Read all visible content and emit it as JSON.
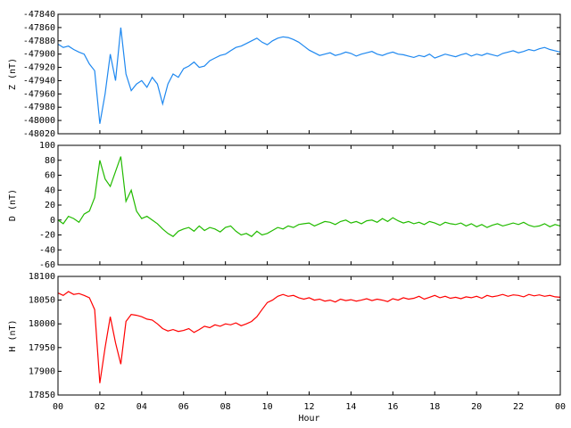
{
  "chart_data": [
    {
      "type": "line",
      "ylabel": "Z (nT)",
      "color": "#1e88f0",
      "x": [
        0,
        0.25,
        0.5,
        0.75,
        1,
        1.25,
        1.5,
        1.75,
        2,
        2.25,
        2.5,
        2.75,
        3,
        3.25,
        3.5,
        3.75,
        4,
        4.25,
        4.5,
        4.75,
        5,
        5.25,
        5.5,
        5.75,
        6,
        6.25,
        6.5,
        6.75,
        7,
        7.25,
        7.5,
        7.75,
        8,
        8.25,
        8.5,
        8.75,
        9,
        9.25,
        9.5,
        9.75,
        10,
        10.25,
        10.5,
        10.75,
        11,
        11.25,
        11.5,
        11.75,
        12,
        12.25,
        12.5,
        12.75,
        13,
        13.25,
        13.5,
        13.75,
        14,
        14.25,
        14.5,
        14.75,
        15,
        15.25,
        15.5,
        15.75,
        16,
        16.25,
        16.5,
        16.75,
        17,
        17.25,
        17.5,
        17.75,
        18,
        18.25,
        18.5,
        18.75,
        19,
        19.25,
        19.5,
        19.75,
        20,
        20.25,
        20.5,
        20.75,
        21,
        21.25,
        21.5,
        21.75,
        22,
        22.25,
        22.5,
        22.75,
        23,
        23.25,
        23.5,
        23.75,
        24
      ],
      "values": [
        -47885,
        -47890,
        -47888,
        -47893,
        -47897,
        -47900,
        -47915,
        -47925,
        -48005,
        -47960,
        -47900,
        -47940,
        -47860,
        -47930,
        -47955,
        -47945,
        -47940,
        -47950,
        -47935,
        -47945,
        -47975,
        -47945,
        -47930,
        -47935,
        -47922,
        -47918,
        -47912,
        -47920,
        -47918,
        -47910,
        -47906,
        -47902,
        -47900,
        -47895,
        -47890,
        -47888,
        -47884,
        -47880,
        -47876,
        -47882,
        -47886,
        -47880,
        -47876,
        -47874,
        -47875,
        -47878,
        -47882,
        -47888,
        -47894,
        -47898,
        -47902,
        -47900,
        -47898,
        -47902,
        -47900,
        -47897,
        -47899,
        -47903,
        -47900,
        -47898,
        -47896,
        -47900,
        -47902,
        -47899,
        -47897,
        -47900,
        -47901,
        -47903,
        -47905,
        -47902,
        -47904,
        -47900,
        -47906,
        -47903,
        -47900,
        -47902,
        -47904,
        -47901,
        -47899,
        -47903,
        -47900,
        -47902,
        -47899,
        -47901,
        -47903,
        -47899,
        -47897,
        -47895,
        -47898,
        -47896,
        -47893,
        -47895,
        -47892,
        -47890,
        -47893,
        -47895,
        -47897
      ],
      "xlim": [
        0,
        24
      ],
      "xticks": [
        0,
        2,
        4,
        6,
        8,
        10,
        12,
        14,
        16,
        18,
        20,
        22,
        24
      ],
      "ylim": [
        -48020,
        -47840
      ],
      "yticks": [
        -48020,
        -48000,
        -47980,
        -47960,
        -47940,
        -47920,
        -47900,
        -47880,
        -47860,
        -47840
      ]
    },
    {
      "type": "line",
      "ylabel": "D (nT)",
      "color": "#22bb00",
      "x": [
        0,
        0.25,
        0.5,
        0.75,
        1,
        1.25,
        1.5,
        1.75,
        2,
        2.25,
        2.5,
        2.75,
        3,
        3.25,
        3.5,
        3.75,
        4,
        4.25,
        4.5,
        4.75,
        5,
        5.25,
        5.5,
        5.75,
        6,
        6.25,
        6.5,
        6.75,
        7,
        7.25,
        7.5,
        7.75,
        8,
        8.25,
        8.5,
        8.75,
        9,
        9.25,
        9.5,
        9.75,
        10,
        10.25,
        10.5,
        10.75,
        11,
        11.25,
        11.5,
        11.75,
        12,
        12.25,
        12.5,
        12.75,
        13,
        13.25,
        13.5,
        13.75,
        14,
        14.25,
        14.5,
        14.75,
        15,
        15.25,
        15.5,
        15.75,
        16,
        16.25,
        16.5,
        16.75,
        17,
        17.25,
        17.5,
        17.75,
        18,
        18.25,
        18.5,
        18.75,
        19,
        19.25,
        19.5,
        19.75,
        20,
        20.25,
        20.5,
        20.75,
        21,
        21.25,
        21.5,
        21.75,
        22,
        22.25,
        22.5,
        22.75,
        23,
        23.25,
        23.5,
        23.75,
        24
      ],
      "values": [
        0,
        -5,
        5,
        2,
        -3,
        8,
        12,
        30,
        80,
        55,
        45,
        65,
        85,
        25,
        40,
        12,
        2,
        5,
        0,
        -5,
        -12,
        -18,
        -22,
        -15,
        -12,
        -10,
        -15,
        -8,
        -14,
        -10,
        -12,
        -16,
        -10,
        -8,
        -15,
        -20,
        -18,
        -22,
        -15,
        -20,
        -18,
        -14,
        -10,
        -12,
        -8,
        -10,
        -6,
        -5,
        -4,
        -8,
        -5,
        -2,
        -3,
        -6,
        -2,
        0,
        -4,
        -2,
        -5,
        -1,
        0,
        -3,
        2,
        -2,
        3,
        -1,
        -4,
        -2,
        -5,
        -3,
        -6,
        -2,
        -4,
        -7,
        -3,
        -5,
        -6,
        -4,
        -8,
        -5,
        -9,
        -6,
        -10,
        -7,
        -5,
        -8,
        -6,
        -4,
        -6,
        -3,
        -7,
        -9,
        -8,
        -5,
        -9,
        -6,
        -8
      ],
      "xlim": [
        0,
        24
      ],
      "xticks": [
        0,
        2,
        4,
        6,
        8,
        10,
        12,
        14,
        16,
        18,
        20,
        22,
        24
      ],
      "ylim": [
        -60,
        100
      ],
      "yticks": [
        -60,
        -40,
        -20,
        0,
        20,
        40,
        60,
        80,
        100
      ]
    },
    {
      "type": "line",
      "ylabel": "H (nT)",
      "xlabel": "Hour",
      "color": "#ff0000",
      "x": [
        0,
        0.25,
        0.5,
        0.75,
        1,
        1.25,
        1.5,
        1.75,
        2,
        2.25,
        2.5,
        2.75,
        3,
        3.25,
        3.5,
        3.75,
        4,
        4.25,
        4.5,
        4.75,
        5,
        5.25,
        5.5,
        5.75,
        6,
        6.25,
        6.5,
        6.75,
        7,
        7.25,
        7.5,
        7.75,
        8,
        8.25,
        8.5,
        8.75,
        9,
        9.25,
        9.5,
        9.75,
        10,
        10.25,
        10.5,
        10.75,
        11,
        11.25,
        11.5,
        11.75,
        12,
        12.25,
        12.5,
        12.75,
        13,
        13.25,
        13.5,
        13.75,
        14,
        14.25,
        14.5,
        14.75,
        15,
        15.25,
        15.5,
        15.75,
        16,
        16.25,
        16.5,
        16.75,
        17,
        17.25,
        17.5,
        17.75,
        18,
        18.25,
        18.5,
        18.75,
        19,
        19.25,
        19.5,
        19.75,
        20,
        20.25,
        20.5,
        20.75,
        21,
        21.25,
        21.5,
        21.75,
        22,
        22.25,
        22.5,
        22.75,
        23,
        23.25,
        23.5,
        23.75,
        24
      ],
      "values": [
        18065,
        18060,
        18068,
        18062,
        18064,
        18060,
        18055,
        18030,
        17875,
        17950,
        18015,
        17960,
        17915,
        18005,
        18020,
        18018,
        18015,
        18010,
        18008,
        18000,
        17990,
        17985,
        17988,
        17984,
        17986,
        17990,
        17982,
        17988,
        17995,
        17992,
        17998,
        17995,
        18000,
        17998,
        18002,
        17996,
        18000,
        18005,
        18015,
        18030,
        18045,
        18050,
        18058,
        18062,
        18058,
        18060,
        18055,
        18052,
        18055,
        18050,
        18052,
        18048,
        18050,
        18046,
        18052,
        18049,
        18051,
        18048,
        18050,
        18053,
        18049,
        18052,
        18050,
        18047,
        18053,
        18050,
        18055,
        18052,
        18054,
        18058,
        18052,
        18056,
        18060,
        18055,
        18058,
        18054,
        18056,
        18053,
        18057,
        18055,
        18058,
        18054,
        18060,
        18057,
        18059,
        18062,
        18058,
        18061,
        18060,
        18057,
        18062,
        18059,
        18061,
        18058,
        18060,
        18057,
        18056
      ],
      "xlim": [
        0,
        24
      ],
      "xticks": [
        {
          "value": 0,
          "label": "00"
        },
        {
          "value": 2,
          "label": "02"
        },
        {
          "value": 4,
          "label": "04"
        },
        {
          "value": 6,
          "label": "06"
        },
        {
          "value": 8,
          "label": "08"
        },
        10,
        12,
        14,
        16,
        18,
        20,
        22,
        {
          "value": 24,
          "label": "00"
        }
      ],
      "ylim": [
        17850,
        18100
      ],
      "yticks": [
        17850,
        17900,
        17950,
        18000,
        18050,
        18100
      ]
    }
  ]
}
